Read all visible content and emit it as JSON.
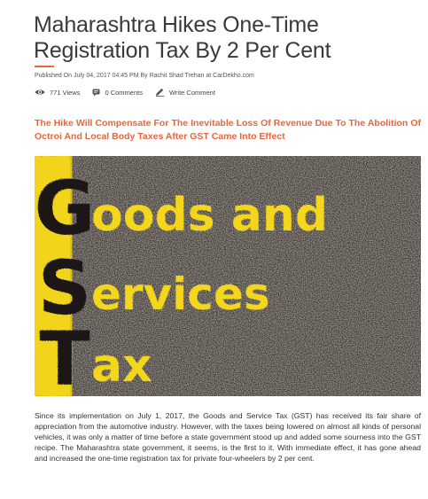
{
  "article": {
    "title": "Maharashtra Hikes One-Time Registration Tax By 2 Per Cent",
    "byline": "Published On July 04, 2017 04:45 PM By Rachit Shad Trehan at CarDekho.com",
    "views": "771 Views",
    "comments": "0 Comments",
    "write_comment": "Write Comment",
    "subtitle": "The Hike Will Compensate For The Inevitable Loss Of Revenue Due To The Abolition Of Octroi And Local Body Taxes After GST Came Into Effect",
    "body": "Since its implementation on July 1, 2017, the Goods and Service Tax (GST) has received its fair share of appreciation from the automotive industry. However, with the taxes being lowered on almost all kinds of personal vehicles, it was only a matter of time before a state government stood up and added some sourness into the GST recipe. The Maharashtra state government, it seems, is the first to it. With immediate effect, it has gone ahead and increased the one-time registration tax for private four-wheelers by 2 per cent."
  },
  "hero_image": {
    "letter_g": "G",
    "letter_s": "S",
    "letter_t": "T",
    "line1": "oods and",
    "line2": "ervices",
    "line3": "ax",
    "colors": {
      "asphalt": "#3f3a36",
      "stripe": "#f2d41c",
      "paint": "#f4d61a",
      "dark_letter": "#1a1816"
    }
  },
  "colors": {
    "accent": "#e8663d",
    "title": "#3a3a3a"
  },
  "icons": {
    "views": "eye-icon",
    "comments": "comment-icon",
    "write": "pencil-icon"
  }
}
